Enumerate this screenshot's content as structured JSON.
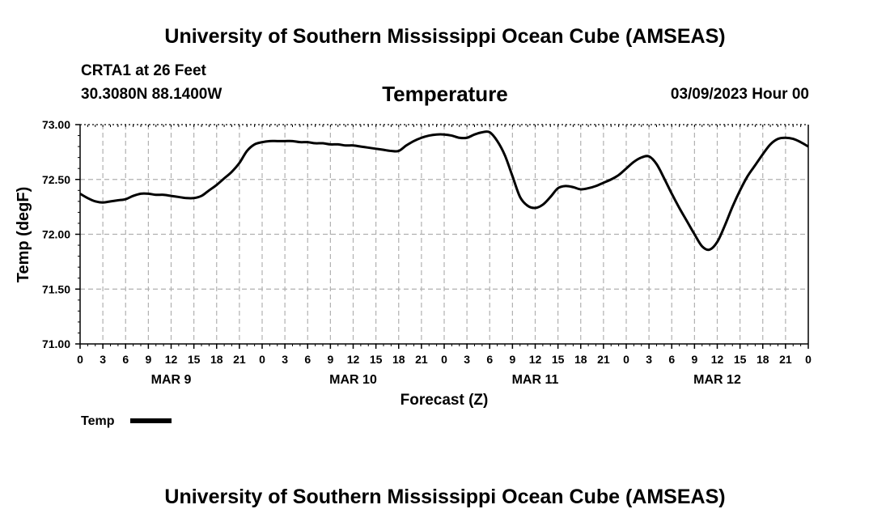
{
  "header": {
    "title": "University of Southern Mississippi Ocean Cube (AMSEAS)",
    "station": "CRTA1 at 26 Feet",
    "coords": "30.3080N  88.1400W",
    "variable": "Temperature",
    "run": "03/09/2023 Hour 00"
  },
  "footer": {
    "title": "University of Southern Mississippi Ocean Cube (AMSEAS)"
  },
  "colors": {
    "line": "#000000",
    "grid": "#b0b0b0",
    "background": "#ffffff"
  },
  "chart_data": {
    "type": "line",
    "title": "Temperature",
    "xlabel": "Forecast (Z)",
    "ylabel": "Temp (degF)",
    "xlim": [
      0,
      96
    ],
    "ylim": [
      71.0,
      73.0
    ],
    "grid": true,
    "yticks": [
      71.0,
      71.5,
      72.0,
      72.5,
      73.0
    ],
    "ytick_labels": [
      "71.00",
      "71.50",
      "72.00",
      "72.50",
      "73.00"
    ],
    "xticks": [
      0,
      3,
      6,
      9,
      12,
      15,
      18,
      21,
      24,
      27,
      30,
      33,
      36,
      39,
      42,
      45,
      48,
      51,
      54,
      57,
      60,
      63,
      66,
      69,
      72,
      75,
      78,
      81,
      84,
      87,
      90,
      93,
      96
    ],
    "xtick_labels": [
      "0",
      "3",
      "6",
      "9",
      "12",
      "15",
      "18",
      "21",
      "0",
      "3",
      "6",
      "9",
      "12",
      "15",
      "18",
      "21",
      "0",
      "3",
      "6",
      "9",
      "12",
      "15",
      "18",
      "21",
      "0",
      "3",
      "6",
      "9",
      "12",
      "15",
      "18",
      "21",
      "0"
    ],
    "day_labels": [
      {
        "hour": 12,
        "label": "MAR 9"
      },
      {
        "hour": 36,
        "label": "MAR 10"
      },
      {
        "hour": 60,
        "label": "MAR 11"
      },
      {
        "hour": 84,
        "label": "MAR 12"
      }
    ],
    "legend": {
      "label": "Temp",
      "position": "bottom-left"
    },
    "series": [
      {
        "name": "Temp",
        "x": [
          0,
          1,
          2,
          3,
          4,
          5,
          6,
          7,
          8,
          9,
          10,
          11,
          12,
          13,
          14,
          15,
          16,
          17,
          18,
          19,
          20,
          21,
          22,
          23,
          24,
          25,
          26,
          27,
          28,
          29,
          30,
          31,
          32,
          33,
          34,
          35,
          36,
          37,
          38,
          39,
          40,
          41,
          42,
          43,
          44,
          45,
          46,
          47,
          48,
          49,
          50,
          51,
          52,
          53,
          54,
          55,
          56,
          57,
          58,
          59,
          60,
          61,
          62,
          63,
          64,
          65,
          66,
          67,
          68,
          69,
          70,
          71,
          72,
          73,
          74,
          75,
          76,
          77,
          78,
          79,
          80,
          81,
          82,
          83,
          84,
          85,
          86,
          87,
          88,
          89,
          90,
          91,
          92,
          93,
          94,
          95,
          96
        ],
        "values": [
          72.37,
          72.33,
          72.3,
          72.29,
          72.3,
          72.31,
          72.32,
          72.35,
          72.37,
          72.37,
          72.36,
          72.36,
          72.35,
          72.34,
          72.33,
          72.33,
          72.35,
          72.4,
          72.45,
          72.51,
          72.57,
          72.65,
          72.76,
          72.82,
          72.84,
          72.85,
          72.85,
          72.85,
          72.85,
          72.84,
          72.84,
          72.83,
          72.83,
          72.82,
          72.82,
          72.81,
          72.81,
          72.8,
          72.79,
          72.78,
          72.77,
          72.76,
          72.76,
          72.81,
          72.85,
          72.88,
          72.9,
          72.91,
          72.91,
          72.9,
          72.88,
          72.88,
          72.91,
          72.93,
          72.93,
          72.85,
          72.72,
          72.53,
          72.34,
          72.26,
          72.24,
          72.27,
          72.34,
          72.42,
          72.44,
          72.43,
          72.41,
          72.42,
          72.44,
          72.47,
          72.5,
          72.54,
          72.6,
          72.66,
          72.7,
          72.71,
          72.64,
          72.51,
          72.37,
          72.24,
          72.12,
          72.0,
          71.89,
          71.86,
          71.93,
          72.08,
          72.25,
          72.4,
          72.53,
          72.63,
          72.73,
          72.82,
          72.87,
          72.88,
          72.87,
          72.84,
          72.8
        ]
      }
    ]
  }
}
